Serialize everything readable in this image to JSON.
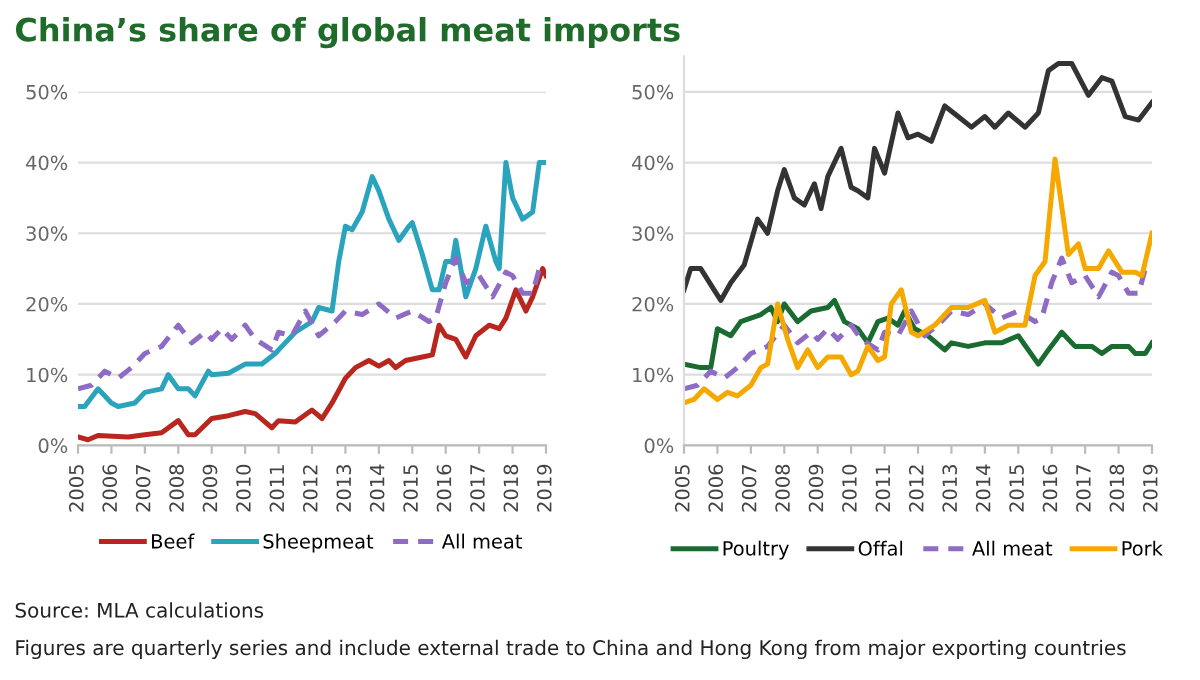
{
  "chart_data": [
    {
      "type": "line",
      "title": "China’s share of global meat imports",
      "xlim": [
        2005,
        2019
      ],
      "xticks": [
        2005,
        2006,
        2007,
        2008,
        2009,
        2010,
        2011,
        2012,
        2013,
        2014,
        2015,
        2016,
        2017,
        2018,
        2019
      ],
      "ylim": [
        0,
        50
      ],
      "yticks": [
        {
          "value": 0,
          "label": "0%"
        },
        {
          "value": 10,
          "label": "10%"
        },
        {
          "value": 20,
          "label": "20%"
        },
        {
          "value": 30,
          "label": "30%"
        },
        {
          "value": 40,
          "label": "40%"
        },
        {
          "value": 50,
          "label": "50%"
        }
      ],
      "grid": "y",
      "legend": "bottom",
      "series": [
        {
          "name": "Beef",
          "color": "#b8261e",
          "line_style": "solid",
          "x": [
            2005,
            2005.3,
            2005.6,
            2006.5,
            2007,
            2007.5,
            2008,
            2008.3,
            2008.5,
            2009,
            2009.5,
            2010,
            2010.3,
            2010.8,
            2011,
            2011.5,
            2012,
            2012.3,
            2012.6,
            2013,
            2013.3,
            2013.7,
            2014,
            2014.3,
            2014.5,
            2014.8,
            2015.3,
            2015.6,
            2015.8,
            2016,
            2016.3,
            2016.6,
            2016.9,
            2017.3,
            2017.6,
            2017.8,
            2018.1,
            2018.4,
            2018.6,
            2018.9,
            2019
          ],
          "values": [
            1.2,
            0.8,
            1.4,
            1.2,
            1.5,
            1.8,
            3.5,
            1.5,
            1.5,
            3.8,
            4.2,
            4.8,
            4.5,
            2.5,
            3.5,
            3.3,
            5,
            3.8,
            6,
            9.5,
            11,
            12,
            11.2,
            12,
            11,
            12,
            12.5,
            12.8,
            17,
            15.5,
            15,
            12.5,
            15.5,
            17,
            16.5,
            18,
            22,
            19,
            21,
            25,
            24
          ]
        },
        {
          "name": "Sheepmeat",
          "color": "#2aa3bd",
          "line_style": "solid",
          "x": [
            2005,
            2005.2,
            2005.6,
            2006,
            2006.2,
            2006.7,
            2007,
            2007.5,
            2007.7,
            2008,
            2008.3,
            2008.5,
            2008.9,
            2009,
            2009.5,
            2010,
            2010.5,
            2010.9,
            2011.1,
            2011.5,
            2012,
            2012.2,
            2012.6,
            2012.8,
            2013,
            2013.2,
            2013.5,
            2013.8,
            2014,
            2014.3,
            2014.6,
            2014.9,
            2015,
            2015.3,
            2015.6,
            2015.8,
            2016,
            2016.2,
            2016.3,
            2016.6,
            2016.9,
            2017.2,
            2017.5,
            2017.6,
            2017.8,
            2018,
            2018.3,
            2018.6,
            2018.8,
            2019
          ],
          "values": [
            5.5,
            5.5,
            8,
            6,
            5.5,
            6,
            7.5,
            8,
            10,
            8,
            8,
            7,
            10.5,
            10,
            10.2,
            11.5,
            11.5,
            13,
            14,
            16,
            17.5,
            19.5,
            19,
            26,
            31,
            30.5,
            33,
            38,
            36,
            32,
            29,
            31,
            31.5,
            27,
            22,
            22,
            26,
            26,
            29,
            21,
            25,
            31,
            26,
            25,
            40,
            35,
            32,
            33,
            40,
            40
          ]
        },
        {
          "name": "All meat",
          "color": "#8e6bc4",
          "line_style": "dashed",
          "x": [
            2005,
            2005.4,
            2005.8,
            2006.2,
            2006.6,
            2007,
            2007.5,
            2008,
            2008.4,
            2008.8,
            2009,
            2009.3,
            2009.6,
            2010,
            2010.3,
            2010.8,
            2011,
            2011.4,
            2011.8,
            2012.2,
            2012.7,
            2013,
            2013.5,
            2014,
            2014.5,
            2015,
            2015.5,
            2015.7,
            2016,
            2016.3,
            2016.6,
            2017,
            2017.4,
            2017.8,
            2018,
            2018.3,
            2018.6,
            2018.8,
            2019
          ],
          "values": [
            8,
            8.5,
            10.5,
            9.5,
            11,
            13,
            14,
            17,
            14.5,
            16,
            15,
            16.5,
            15,
            17,
            15,
            13.5,
            16,
            15.5,
            19,
            15.5,
            17.5,
            19,
            18.5,
            20,
            18,
            19,
            17.5,
            18,
            23,
            26.5,
            23,
            24,
            21,
            24.5,
            24,
            21.5,
            21.5,
            25,
            24.5
          ]
        }
      ],
      "annotations": [
        "Source: MLA calculations",
        "Figures are quarterly series and include external trade to China and Hong Kong from major exporting countries"
      ]
    },
    {
      "type": "line",
      "xlim": [
        2005,
        2019
      ],
      "xticks": [
        2005,
        2006,
        2007,
        2008,
        2009,
        2010,
        2011,
        2012,
        2013,
        2014,
        2015,
        2016,
        2017,
        2018,
        2019
      ],
      "ylim": [
        0,
        55
      ],
      "yticks": [
        {
          "value": 0,
          "label": "0%"
        },
        {
          "value": 10,
          "label": "10%"
        },
        {
          "value": 20,
          "label": "20%"
        },
        {
          "value": 30,
          "label": "30%"
        },
        {
          "value": 40,
          "label": "40%"
        },
        {
          "value": 50,
          "label": "50%"
        }
      ],
      "grid": "y",
      "legend": "bottom",
      "series": [
        {
          "name": "Poultry",
          "color": "#1a6b30",
          "line_style": "solid",
          "x": [
            2005,
            2005.5,
            2005.8,
            2006,
            2006.4,
            2006.7,
            2007.3,
            2007.6,
            2007.8,
            2008,
            2008.4,
            2008.8,
            2009.3,
            2009.5,
            2009.8,
            2010.2,
            2010.5,
            2010.8,
            2011.1,
            2011.4,
            2011.6,
            2011.9,
            2012.3,
            2012.8,
            2013,
            2013.5,
            2014,
            2014.5,
            2015,
            2015.6,
            2015.9,
            2016.3,
            2016.7,
            2017.2,
            2017.5,
            2017.8,
            2018.3,
            2018.5,
            2018.8,
            2019
          ],
          "values": [
            11.5,
            11,
            11,
            16.5,
            15.5,
            17.5,
            18.5,
            19.5,
            17.5,
            20,
            17.5,
            19,
            19.5,
            20.5,
            17.5,
            16.5,
            14.5,
            17.5,
            18,
            17,
            19,
            16.5,
            15.5,
            13.5,
            14.5,
            14,
            14.5,
            14.5,
            15.5,
            11.5,
            13.5,
            16,
            14,
            14,
            13,
            14,
            14,
            13,
            13,
            14.5
          ]
        },
        {
          "name": "Offal",
          "color": "#333333",
          "line_style": "solid",
          "x": [
            2005,
            2005.2,
            2005.5,
            2005.9,
            2006.1,
            2006.4,
            2006.8,
            2007.2,
            2007.5,
            2007.8,
            2008,
            2008.3,
            2008.6,
            2008.9,
            2009.1,
            2009.3,
            2009.7,
            2010,
            2010.2,
            2010.5,
            2010.7,
            2011,
            2011.4,
            2011.7,
            2012,
            2012.4,
            2012.8,
            2013.2,
            2013.6,
            2014,
            2014.3,
            2014.7,
            2015.2,
            2015.6,
            2015.9,
            2016.2,
            2016.6,
            2017.1,
            2017.5,
            2017.8,
            2018.2,
            2018.6,
            2019
          ],
          "values": [
            22,
            25,
            25,
            22,
            20.5,
            23,
            25.5,
            32,
            30,
            36,
            39,
            35,
            34,
            37,
            33.5,
            38,
            42,
            36.5,
            36,
            35,
            42,
            38.5,
            47,
            43.5,
            44,
            43,
            48,
            46.5,
            45,
            46.5,
            45,
            47,
            45,
            47,
            53,
            54,
            54,
            49.5,
            52,
            51.5,
            46.5,
            46,
            48.5
          ]
        },
        {
          "name": "All meat",
          "color": "#8e6bc4",
          "line_style": "dashed",
          "x": [
            2005,
            2005.4,
            2005.8,
            2006.2,
            2006.6,
            2007,
            2007.5,
            2008,
            2008.4,
            2008.8,
            2009,
            2009.3,
            2009.6,
            2010,
            2010.3,
            2010.8,
            2011,
            2011.4,
            2011.8,
            2012.2,
            2012.7,
            2013,
            2013.5,
            2014,
            2014.5,
            2015,
            2015.5,
            2015.7,
            2016,
            2016.3,
            2016.6,
            2017,
            2017.4,
            2017.8,
            2018,
            2018.3,
            2018.6,
            2018.8,
            2019
          ],
          "values": [
            8,
            8.5,
            10.5,
            9.5,
            11,
            13,
            14,
            17,
            14.5,
            16,
            15,
            16.5,
            15,
            17,
            15,
            13.5,
            16,
            15.5,
            19,
            15.5,
            17.5,
            19,
            18.5,
            20,
            18,
            19,
            17.5,
            18,
            23,
            26.5,
            23,
            24,
            21,
            24.5,
            24,
            21.5,
            21.5,
            25,
            24.5
          ]
        },
        {
          "name": "Pork",
          "color": "#f5a800",
          "line_style": "solid",
          "x": [
            2005,
            2005.3,
            2005.6,
            2006,
            2006.3,
            2006.6,
            2007,
            2007.3,
            2007.5,
            2007.8,
            2008.1,
            2008.4,
            2008.7,
            2009,
            2009.3,
            2009.7,
            2010,
            2010.2,
            2010.5,
            2010.8,
            2011,
            2011.2,
            2011.5,
            2011.8,
            2012,
            2012.5,
            2013,
            2013.5,
            2014,
            2014.3,
            2014.7,
            2015.2,
            2015.5,
            2015.8,
            2016.1,
            2016.5,
            2016.8,
            2017,
            2017.4,
            2017.7,
            2018.1,
            2018.5,
            2018.7,
            2019
          ],
          "values": [
            6,
            6.5,
            8,
            6.5,
            7.5,
            7,
            8.5,
            11,
            11.5,
            20,
            15,
            11,
            13.5,
            11,
            12.5,
            12.5,
            10,
            10.5,
            14,
            12,
            12.5,
            20,
            22,
            16,
            15.5,
            17,
            19.5,
            19.5,
            20.5,
            16,
            17,
            17,
            24,
            26,
            40.5,
            27,
            28.5,
            25,
            25,
            27.5,
            24.5,
            24.5,
            24,
            30
          ]
        }
      ]
    }
  ]
}
